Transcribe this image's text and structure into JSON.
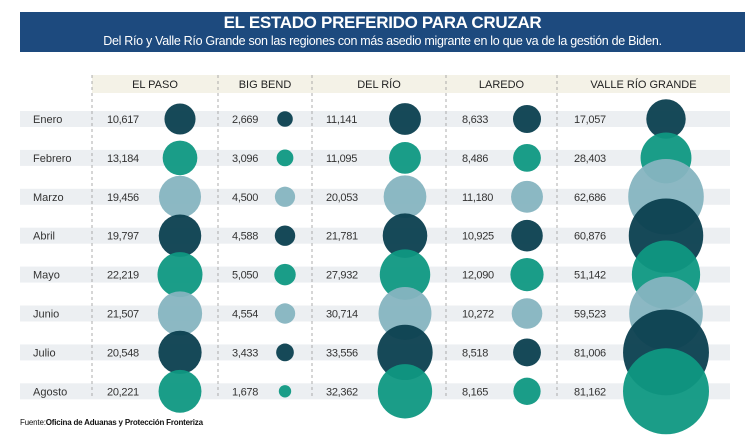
{
  "chart_data": {
    "type": "bubble-table",
    "title": "EL ESTADO PREFERIDO PARA CRUZAR",
    "subtitle": "Del Río y Valle Río Grande son las regiones con más asedio migrante en lo que va de la gestión de Biden.",
    "categories": [
      "Enero",
      "Febrero",
      "Marzo",
      "Abril",
      "Mayo",
      "Junio",
      "Julio",
      "Agosto"
    ],
    "series": [
      {
        "name": "EL PASO",
        "values": [
          10617,
          13184,
          19456,
          19797,
          22219,
          21507,
          20548,
          20221
        ],
        "labels": [
          "10,617",
          "13,184",
          "19,456",
          "19,797",
          "22,219",
          "21,507",
          "20,548",
          "20,221"
        ]
      },
      {
        "name": "BIG BEND",
        "values": [
          2669,
          3096,
          4500,
          4588,
          5050,
          4554,
          3433,
          1678
        ],
        "labels": [
          "2,669",
          "3,096",
          "4,500",
          "4,588",
          "5,050",
          "4,554",
          "3,433",
          "1,678"
        ]
      },
      {
        "name": "DEL RÍO",
        "values": [
          11141,
          11095,
          20053,
          21781,
          27932,
          30714,
          33556,
          32362
        ],
        "labels": [
          "11,141",
          "11,095",
          "20,053",
          "21,781",
          "27,932",
          "30,714",
          "33,556",
          "32,362"
        ]
      },
      {
        "name": "LAREDO",
        "values": [
          8633,
          8486,
          11180,
          10925,
          12090,
          10272,
          8518,
          8165
        ],
        "labels": [
          "8,633",
          "8,486",
          "11,180",
          "10,925",
          "12,090",
          "10,272",
          "8,518",
          "8,165"
        ]
      },
      {
        "name": "VALLE RÍO GRANDE",
        "values": [
          17057,
          28403,
          62686,
          60876,
          51142,
          59523,
          81006,
          81162
        ],
        "labels": [
          "17,057",
          "28,403",
          "62,686",
          "60,876",
          "51,142",
          "59,523",
          "81,006",
          "81,162"
        ]
      }
    ],
    "month_colors": [
      "#0b3f4f",
      "#0f9882",
      "#86b4c0"
    ],
    "source_label": "Fuente:",
    "source": "Oficina de Aduanas y Protección Fronteriza"
  }
}
